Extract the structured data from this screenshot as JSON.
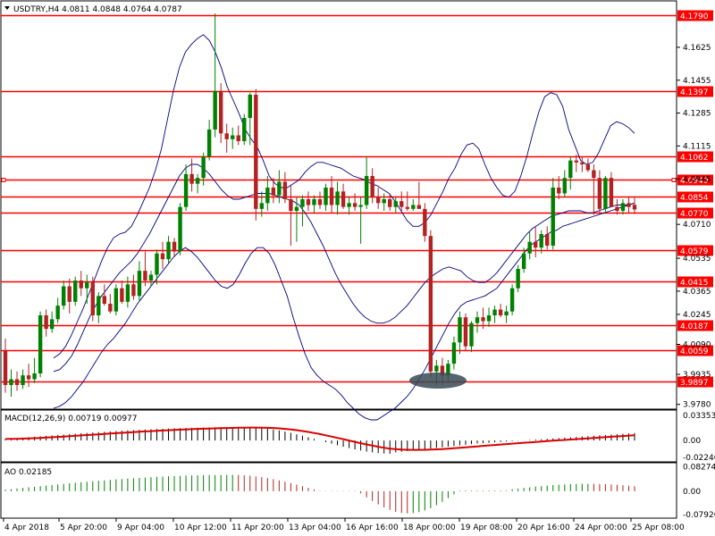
{
  "header": {
    "symbol_text": "USDTRY,H4  4.0811 4.0848 4.0764 4.0787"
  },
  "indicators": {
    "macd_label": "MACD(12,26,9) 0.00719 0.00977",
    "ao_label": "AO 0.02185"
  },
  "colors": {
    "frame": "#000000",
    "level_line": "#ff0000",
    "label_bg": "#ff0000",
    "bull_candle": "#008000",
    "bear_candle": "#b22222",
    "bands": "#000080",
    "macd_hist": "#000000",
    "macd_signal": "#dd0000",
    "ao_up": "#008000",
    "ao_down": "#b22222",
    "ellipse": "#3a4a55"
  },
  "chart_data": [
    {
      "type": "candlestick",
      "symbol": "USDTRY",
      "timeframe": "H4",
      "x_ticks": [
        "4 Apr 2018",
        "5 Apr 20:00",
        "9 Apr 04:00",
        "10 Apr 12:00",
        "11 Apr 20:00",
        "13 Apr 04:00",
        "16 Apr 16:00",
        "18 Apr 00:00",
        "19 Apr 08:00",
        "20 Apr 16:00",
        "24 Apr 00:00",
        "25 Apr 08:00"
      ],
      "y_ticks": [
        "4.1625",
        "4.1455",
        "4.1285",
        "4.1115",
        "4.0945",
        "4.0710",
        "4.0535",
        "4.0365",
        "4.0245",
        "4.0090",
        "3.9935",
        "3.9780"
      ],
      "ylim": [
        3.976,
        4.186
      ],
      "horizontal_levels": [
        4.179,
        4.1397,
        4.1062,
        4.094,
        4.0854,
        4.077,
        4.0579,
        4.0415,
        4.0187,
        4.0059,
        3.9897
      ],
      "level_labels": [
        "4.1790",
        "4.1397",
        "4.1062",
        "4.0940",
        "4.0854",
        "4.0770",
        "4.0579",
        "4.0415",
        "4.0187",
        "4.0059",
        "3.9897"
      ],
      "marked_levels": [
        4.094
      ],
      "ohlc": [
        [
          4.006,
          4.012,
          3.984,
          3.988
        ],
        [
          3.988,
          3.996,
          3.982,
          3.991
        ],
        [
          3.991,
          3.995,
          3.985,
          3.988
        ],
        [
          3.988,
          3.996,
          3.986,
          3.993
        ],
        [
          3.993,
          3.999,
          3.987,
          3.991
        ],
        [
          3.991,
          4.002,
          3.989,
          3.994
        ],
        [
          3.994,
          4.026,
          3.992,
          4.024
        ],
        [
          4.024,
          4.027,
          4.013,
          4.017
        ],
        [
          4.017,
          4.026,
          4.015,
          4.022
        ],
        [
          4.022,
          4.033,
          4.02,
          4.029
        ],
        [
          4.029,
          4.042,
          4.027,
          4.039
        ],
        [
          4.039,
          4.043,
          4.025,
          4.031
        ],
        [
          4.031,
          4.044,
          4.029,
          4.042
        ],
        [
          4.042,
          4.047,
          4.034,
          4.038
        ],
        [
          4.038,
          4.045,
          4.03,
          4.041
        ],
        [
          4.041,
          4.044,
          4.021,
          4.024
        ],
        [
          4.024,
          4.036,
          4.02,
          4.034
        ],
        [
          4.034,
          4.04,
          4.029,
          4.03
        ],
        [
          4.03,
          4.035,
          4.025,
          4.026
        ],
        [
          4.026,
          4.04,
          4.024,
          4.038
        ],
        [
          4.038,
          4.042,
          4.03,
          4.031
        ],
        [
          4.031,
          4.044,
          4.028,
          4.04
        ],
        [
          4.04,
          4.045,
          4.032,
          4.034
        ],
        [
          4.034,
          4.052,
          4.031,
          4.047
        ],
        [
          4.047,
          4.057,
          4.039,
          4.042
        ],
        [
          4.042,
          4.047,
          4.039,
          4.045
        ],
        [
          4.045,
          4.058,
          4.04,
          4.056
        ],
        [
          4.056,
          4.062,
          4.048,
          4.053
        ],
        [
          4.053,
          4.065,
          4.051,
          4.062
        ],
        [
          4.062,
          4.064,
          4.054,
          4.057
        ],
        [
          4.057,
          4.082,
          4.055,
          4.08
        ],
        [
          4.08,
          4.102,
          4.078,
          4.097
        ],
        [
          4.097,
          4.105,
          4.088,
          4.092
        ],
        [
          4.092,
          4.097,
          4.087,
          4.095
        ],
        [
          4.095,
          4.108,
          4.091,
          4.106
        ],
        [
          4.106,
          4.125,
          4.104,
          4.12
        ],
        [
          4.12,
          4.18,
          4.116,
          4.14
        ],
        [
          4.14,
          4.144,
          4.113,
          4.118
        ],
        [
          4.118,
          4.123,
          4.108,
          4.115
        ],
        [
          4.115,
          4.121,
          4.11,
          4.117
        ],
        [
          4.117,
          4.122,
          4.112,
          4.114
        ],
        [
          4.114,
          4.128,
          4.112,
          4.126
        ],
        [
          4.126,
          4.139,
          4.112,
          4.138
        ],
        [
          4.138,
          4.141,
          4.073,
          4.079
        ],
        [
          4.079,
          4.088,
          4.075,
          4.082
        ],
        [
          4.082,
          4.096,
          4.078,
          4.09
        ],
        [
          4.09,
          4.095,
          4.082,
          4.086
        ],
        [
          4.086,
          4.099,
          4.082,
          4.093
        ],
        [
          4.093,
          4.098,
          4.082,
          4.084
        ],
        [
          4.084,
          4.091,
          4.06,
          4.078
        ],
        [
          4.078,
          4.085,
          4.062,
          4.08
        ],
        [
          4.08,
          4.086,
          4.07,
          4.084
        ],
        [
          4.084,
          4.088,
          4.078,
          4.081
        ],
        [
          4.081,
          4.086,
          4.077,
          4.084
        ],
        [
          4.084,
          4.088,
          4.079,
          4.081
        ],
        [
          4.081,
          4.092,
          4.078,
          4.09
        ],
        [
          4.09,
          4.096,
          4.077,
          4.081
        ],
        [
          4.081,
          4.093,
          4.076,
          4.088
        ],
        [
          4.088,
          4.092,
          4.079,
          4.08
        ],
        [
          4.08,
          4.085,
          4.076,
          4.082
        ],
        [
          4.082,
          4.087,
          4.078,
          4.08
        ],
        [
          4.08,
          4.085,
          4.061,
          4.081
        ],
        [
          4.081,
          4.106,
          4.079,
          4.096
        ],
        [
          4.096,
          4.1,
          4.082,
          4.085
        ],
        [
          4.085,
          4.09,
          4.079,
          4.082
        ],
        [
          4.082,
          4.087,
          4.078,
          4.084
        ],
        [
          4.084,
          4.087,
          4.078,
          4.08
        ],
        [
          4.08,
          4.085,
          4.077,
          4.083
        ],
        [
          4.083,
          4.088,
          4.078,
          4.08
        ],
        [
          4.08,
          4.088,
          4.078,
          4.079
        ],
        [
          4.079,
          4.084,
          4.078,
          4.081
        ],
        [
          4.081,
          4.093,
          4.079,
          4.079
        ],
        [
          4.079,
          4.082,
          4.062,
          4.065
        ],
        [
          4.065,
          4.068,
          3.992,
          3.995
        ],
        [
          3.995,
          4.001,
          3.988,
          3.998
        ],
        [
          3.998,
          4.002,
          3.988,
          3.993
        ],
        [
          3.993,
          4.001,
          3.99,
          3.999
        ],
        [
          3.999,
          4.013,
          3.996,
          4.01
        ],
        [
          4.01,
          4.026,
          4.004,
          4.023
        ],
        [
          4.023,
          4.025,
          4.006,
          4.008
        ],
        [
          4.008,
          4.021,
          4.005,
          4.02
        ],
        [
          4.02,
          4.026,
          4.015,
          4.023
        ],
        [
          4.023,
          4.028,
          4.017,
          4.021
        ],
        [
          4.021,
          4.028,
          4.018,
          4.024
        ],
        [
          4.024,
          4.029,
          4.02,
          4.027
        ],
        [
          4.027,
          4.03,
          4.023,
          4.024
        ],
        [
          4.024,
          4.029,
          4.02,
          4.026
        ],
        [
          4.026,
          4.04,
          4.024,
          4.038
        ],
        [
          4.038,
          4.05,
          4.036,
          4.048
        ],
        [
          4.048,
          4.059,
          4.046,
          4.056
        ],
        [
          4.056,
          4.067,
          4.053,
          4.062
        ],
        [
          4.062,
          4.07,
          4.054,
          4.059
        ],
        [
          4.059,
          4.068,
          4.056,
          4.066
        ],
        [
          4.066,
          4.07,
          4.058,
          4.06
        ],
        [
          4.06,
          4.095,
          4.058,
          4.09
        ],
        [
          4.09,
          4.096,
          4.084,
          4.087
        ],
        [
          4.087,
          4.099,
          4.085,
          4.095
        ],
        [
          4.095,
          4.106,
          4.089,
          4.104
        ],
        [
          4.104,
          4.107,
          4.098,
          4.103
        ],
        [
          4.103,
          4.106,
          4.098,
          4.102
        ],
        [
          4.102,
          4.105,
          4.098,
          4.099
        ],
        [
          4.099,
          4.102,
          4.076,
          4.095
        ],
        [
          4.095,
          4.099,
          4.076,
          4.079
        ],
        [
          4.079,
          4.096,
          4.077,
          4.095
        ],
        [
          4.095,
          4.098,
          4.08,
          4.08
        ],
        [
          4.08,
          4.084,
          4.076,
          4.078
        ],
        [
          4.078,
          4.084,
          4.076,
          4.082
        ],
        [
          4.082,
          4.085,
          4.077,
          4.08
        ],
        [
          4.0811,
          4.0848,
          4.0764,
          4.0787
        ]
      ],
      "bollinger": {
        "upper": [
          4.002,
          4.004,
          4.008,
          4.014,
          4.021,
          4.028,
          4.036,
          4.044,
          4.052,
          4.059,
          4.064,
          4.066,
          4.067,
          4.07,
          4.076,
          4.083,
          4.09,
          4.099,
          4.11,
          4.125,
          4.14,
          4.152,
          4.16,
          4.164,
          4.167,
          4.169,
          4.166,
          4.16,
          4.152,
          4.142,
          4.135,
          4.128,
          4.12,
          4.115,
          4.111,
          4.104,
          4.096,
          4.092,
          4.09,
          4.09,
          4.092,
          4.094,
          4.098,
          4.101,
          4.103,
          4.103,
          4.102,
          4.101,
          4.1,
          4.098,
          4.096,
          4.095,
          4.094,
          4.092,
          4.091,
          4.089,
          4.087,
          4.083,
          4.078,
          4.073,
          4.07,
          4.07,
          4.072,
          4.076,
          4.082,
          4.088,
          4.095,
          4.1,
          4.107,
          4.112,
          4.113,
          4.11,
          4.102,
          4.095,
          4.09,
          4.086,
          4.085,
          4.088,
          4.096,
          4.106,
          4.118,
          4.129,
          4.137,
          4.139,
          4.138,
          4.132,
          4.12,
          4.112,
          4.104,
          4.102,
          4.103,
          4.108,
          4.115,
          4.122,
          4.124,
          4.123,
          4.121,
          4.118
        ],
        "middle": [
          3.995,
          3.996,
          3.999,
          4.003,
          4.009,
          4.016,
          4.023,
          4.029,
          4.034,
          4.038,
          4.042,
          4.046,
          4.049,
          4.052,
          4.056,
          4.061,
          4.066,
          4.072,
          4.078,
          4.084,
          4.09,
          4.096,
          4.1,
          4.102,
          4.102,
          4.1,
          4.097,
          4.093,
          4.089,
          4.086,
          4.084,
          4.084,
          4.085,
          4.086,
          4.087,
          4.087,
          4.087,
          4.086,
          4.085,
          4.084,
          4.083,
          4.081,
          4.077,
          4.072,
          4.066,
          4.06,
          4.053,
          4.046,
          4.04,
          4.035,
          4.03,
          4.026,
          4.023,
          4.021,
          4.02,
          4.02,
          4.021,
          4.023,
          4.026,
          4.029,
          4.033,
          4.037,
          4.041,
          4.044,
          4.046,
          4.048,
          4.049,
          4.048,
          4.047,
          4.044,
          4.042,
          4.041,
          4.041,
          4.043,
          4.046,
          4.05,
          4.054,
          4.058,
          4.062,
          4.066,
          4.069,
          4.071,
          4.073,
          4.075,
          4.076,
          4.077,
          4.078,
          4.078,
          4.078,
          4.077,
          4.077,
          4.078,
          4.079,
          4.08,
          4.081,
          4.081,
          4.081,
          4.082
        ],
        "lower": [
          3.976,
          3.977,
          3.979,
          3.982,
          3.986,
          3.99,
          3.995,
          4.0,
          4.005,
          4.009,
          4.012,
          4.016,
          4.02,
          4.025,
          4.03,
          4.034,
          4.038,
          4.042,
          4.046,
          4.05,
          4.054,
          4.057,
          4.059,
          4.057,
          4.054,
          4.05,
          4.046,
          4.042,
          4.039,
          4.038,
          4.04,
          4.045,
          4.051,
          4.056,
          4.059,
          4.059,
          4.056,
          4.05,
          4.042,
          4.034,
          4.023,
          4.013,
          4.004,
          3.997,
          3.993,
          3.99,
          3.988,
          3.986,
          3.983,
          3.979,
          3.976,
          3.973,
          3.971,
          3.97,
          3.97,
          3.972,
          3.974,
          3.976,
          3.979,
          3.982,
          3.986,
          3.991,
          3.996,
          4.002,
          4.008,
          4.014,
          4.02,
          4.025,
          4.029,
          4.031,
          4.032,
          4.033,
          4.034,
          4.036,
          4.038,
          4.042,
          4.046,
          4.05,
          4.054,
          4.058,
          4.061,
          4.063,
          4.065,
          4.067,
          4.068,
          4.07,
          4.071,
          4.072,
          4.073,
          4.074,
          4.075,
          4.076,
          4.077,
          4.078,
          4.079,
          4.08,
          4.081,
          4.082
        ]
      }
    },
    {
      "type": "bar",
      "name": "MACD(12,26,9)",
      "y_ticks": [
        "0.03353",
        "0.00",
        "-0.02246"
      ],
      "ylim": [
        -0.0275,
        0.0385
      ],
      "values_histogram_trend": "rises to ~0.018 around 11 Apr, falls to ~-0.015 around 19 Apr, recovers to ~0.007",
      "signal_trend": "red line following histogram with lag"
    },
    {
      "type": "bar",
      "name": "AO",
      "y_ticks": [
        "0.08274",
        "0.00",
        "-0.07926"
      ],
      "ylim": [
        -0.088,
        0.09
      ],
      "values_trend": "positive up to ~0.055 near 11 Apr, negative to ~-0.075 near 19 Apr, positive ~0.02 at end"
    }
  ]
}
